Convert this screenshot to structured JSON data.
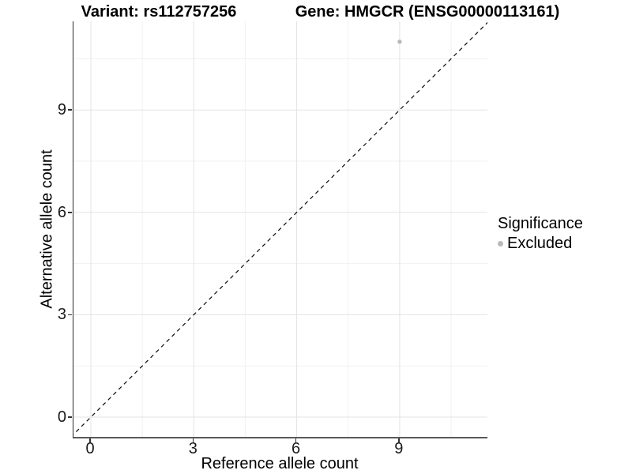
{
  "titles": {
    "variant": "Variant: rs112757256",
    "gene": "Gene: HMGCR (ENSG00000113161)"
  },
  "axes": {
    "x": {
      "label": "Reference allele count",
      "tick_labels": [
        "0",
        "3",
        "6",
        "9"
      ]
    },
    "y": {
      "label": "Alternative allele count",
      "tick_labels": [
        "0",
        "3",
        "6",
        "9"
      ]
    }
  },
  "legend": {
    "title": "Significance",
    "items": [
      {
        "label": "Excluded",
        "color": "#b9b9b9"
      }
    ]
  },
  "colors": {
    "point": "#b9b9b9",
    "grid_major": "#e3e3e3",
    "grid_minor": "#f1f1f1",
    "reference_line": "#0a0a0a",
    "axis_line": "#595959"
  },
  "chart_data": {
    "type": "scatter",
    "title_left": "Variant: rs112757256",
    "title_right": "Gene: HMGCR (ENSG00000113161)",
    "xlabel": "Reference allele count",
    "ylabel": "Alternative allele count",
    "series": [
      {
        "name": "Excluded",
        "color": "#b9b9b9",
        "points": [
          {
            "x": 9,
            "y": 11
          }
        ]
      }
    ],
    "reference_line": {
      "kind": "identity",
      "slope": 1,
      "intercept": 0,
      "style": "dashed",
      "color": "#0a0a0a"
    },
    "x_ticks": [
      0,
      3,
      6,
      9
    ],
    "y_ticks": [
      0,
      3,
      6,
      9
    ],
    "x_minor_ticks": [
      1.5,
      4.5,
      7.5,
      10.5
    ],
    "y_minor_ticks": [
      1.5,
      4.5,
      7.5,
      10.5
    ],
    "xlim": [
      -0.55,
      11.6
    ],
    "ylim": [
      -0.58,
      11.6
    ],
    "grid": "major+minor",
    "legend_title": "Significance",
    "legend_position": "right"
  }
}
